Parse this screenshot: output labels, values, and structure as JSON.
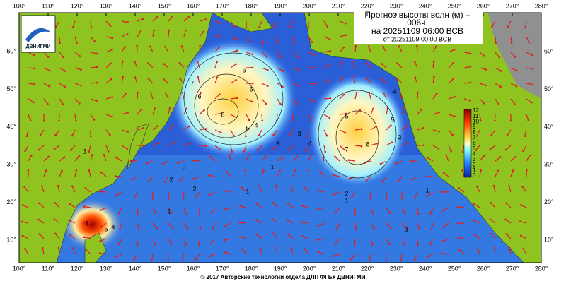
{
  "logo": "ДВНИГМИ",
  "title": {
    "line1": "Прогноз высоты волн (м) –",
    "line2": "006ч.",
    "line3": "на 20251109 06:00 ВСВ",
    "line4": "от 20251109 00:00 ВСВ"
  },
  "lon_labels": [
    "100°",
    "110°",
    "120°",
    "130°",
    "140°",
    "150°",
    "160°",
    "170°",
    "180°",
    "190°",
    "200°",
    "210°",
    "220°",
    "230°",
    "240°",
    "250°",
    "260°",
    "270°",
    "280°"
  ],
  "lat_labels": [
    "60°",
    "50°",
    "40°",
    "30°",
    "20°",
    "10°"
  ],
  "colorbar_labels": [
    "12",
    "11",
    "10",
    "9",
    "8",
    "7",
    "6",
    "5",
    "4",
    "3",
    "2",
    "1",
    "0"
  ],
  "contour_labels": [
    "6",
    "7",
    "6",
    "8",
    "6",
    "5",
    "4",
    "4",
    "3",
    "2",
    "1",
    "5",
    "7",
    "8",
    "5",
    "4",
    "3",
    "2",
    "1",
    "1",
    "1",
    "3",
    "4",
    "5",
    "1",
    "2",
    "3",
    "1",
    "2",
    "1"
  ],
  "footer": "© 2017 Авторские технологии отдела ДЛП ФГБУ ДВНИГМИ"
}
